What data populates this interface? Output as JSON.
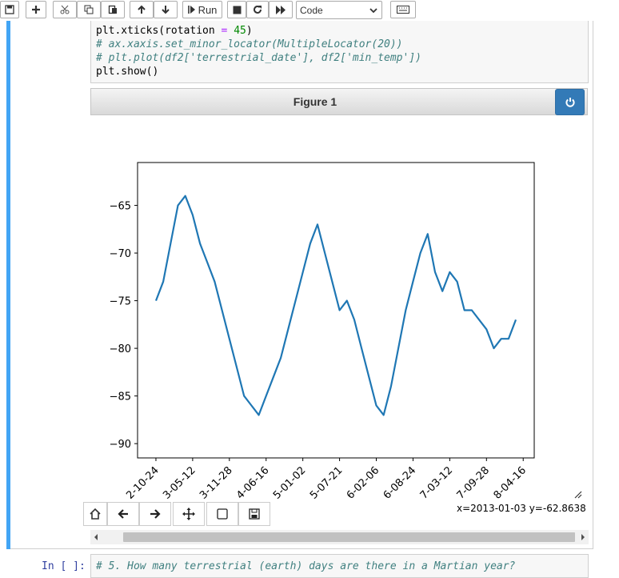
{
  "toolbar": {
    "run_label": "Run",
    "cell_type": "Code",
    "buttons": [
      "save-icon",
      "plus-icon",
      "cut-icon",
      "copy-icon",
      "paste-icon",
      "arrow-up-icon",
      "arrow-down-icon",
      "run-icon",
      "stop-icon",
      "restart-icon",
      "fast-forward-icon",
      "keyboard-icon"
    ]
  },
  "cell": {
    "code_lines": [
      {
        "parts": [
          {
            "t": "plt.xticks(rotation ",
            "c": ""
          },
          {
            "t": "=",
            "c": "op"
          },
          {
            "t": " ",
            "c": ""
          },
          {
            "t": "45",
            "c": "num"
          },
          {
            "t": ")",
            "c": ""
          }
        ]
      },
      {
        "parts": [
          {
            "t": "# ax.xaxis.set_minor_locator(MultipleLocator(20))",
            "c": "cm"
          }
        ]
      },
      {
        "parts": [
          {
            "t": "# plt.plot(df2['terrestrial_date'], df2['min_temp'])",
            "c": "cm"
          }
        ]
      },
      {
        "parts": [
          {
            "t": "plt.show()",
            "c": ""
          }
        ]
      }
    ]
  },
  "figure": {
    "title": "Figure 1",
    "coords_readout": "x=2013-01-03 y=-62.8638",
    "nav_icons": [
      "home-icon",
      "back-arrow-icon",
      "forward-arrow-icon",
      "move-icon",
      "zoom-rect-icon",
      "save-figure-icon"
    ]
  },
  "chart_data": {
    "type": "line",
    "color": "#1f77b4",
    "ylim": [
      -91.5,
      -60.5
    ],
    "yticks": [
      -65,
      -70,
      -75,
      -80,
      -85,
      -90
    ],
    "ytick_labels": [
      "−65",
      "−70",
      "−75",
      "−80",
      "−85",
      "−90"
    ],
    "xtick_labels": [
      "2-10-24",
      "3-05-12",
      "3-11-28",
      "4-06-16",
      "5-01-02",
      "5-07-21",
      "6-02-06",
      "6-08-24",
      "7-03-12",
      "7-09-28",
      "8-04-16"
    ],
    "x_range": [
      0,
      10.8
    ],
    "xtick_positions": [
      0.5,
      1.5,
      2.5,
      3.5,
      4.5,
      5.5,
      6.5,
      7.5,
      8.5,
      9.5,
      10.5
    ],
    "series": [
      {
        "x": [
          0.5,
          0.7,
          0.9,
          1.1,
          1.3,
          1.5,
          1.7,
          1.9,
          2.1,
          2.3,
          2.5,
          2.7,
          2.9,
          3.1,
          3.3,
          3.5,
          3.7,
          3.9,
          4.1,
          4.3,
          4.5,
          4.7,
          4.9,
          5.1,
          5.3,
          5.5,
          5.7,
          5.9,
          6.1,
          6.3,
          6.5,
          6.7,
          6.9,
          7.1,
          7.3,
          7.5,
          7.7,
          7.9,
          8.1,
          8.3,
          8.5,
          8.7,
          8.9,
          9.1,
          9.3,
          9.5,
          9.7,
          9.9,
          10.1,
          10.3
        ],
        "y": [
          -75,
          -73,
          -69,
          -65,
          -64,
          -66,
          -69,
          -71,
          -73,
          -76,
          -79,
          -82,
          -85,
          -86,
          -87,
          -85,
          -83,
          -81,
          -78,
          -75,
          -72,
          -69,
          -67,
          -70,
          -73,
          -76,
          -75,
          -77,
          -80,
          -83,
          -86,
          -87,
          -84,
          -80,
          -76,
          -73,
          -70,
          -68,
          -72,
          -74,
          -72,
          -73,
          -76,
          -76,
          -77,
          -78,
          -80,
          -79,
          -79,
          -77
        ]
      }
    ]
  }
}
